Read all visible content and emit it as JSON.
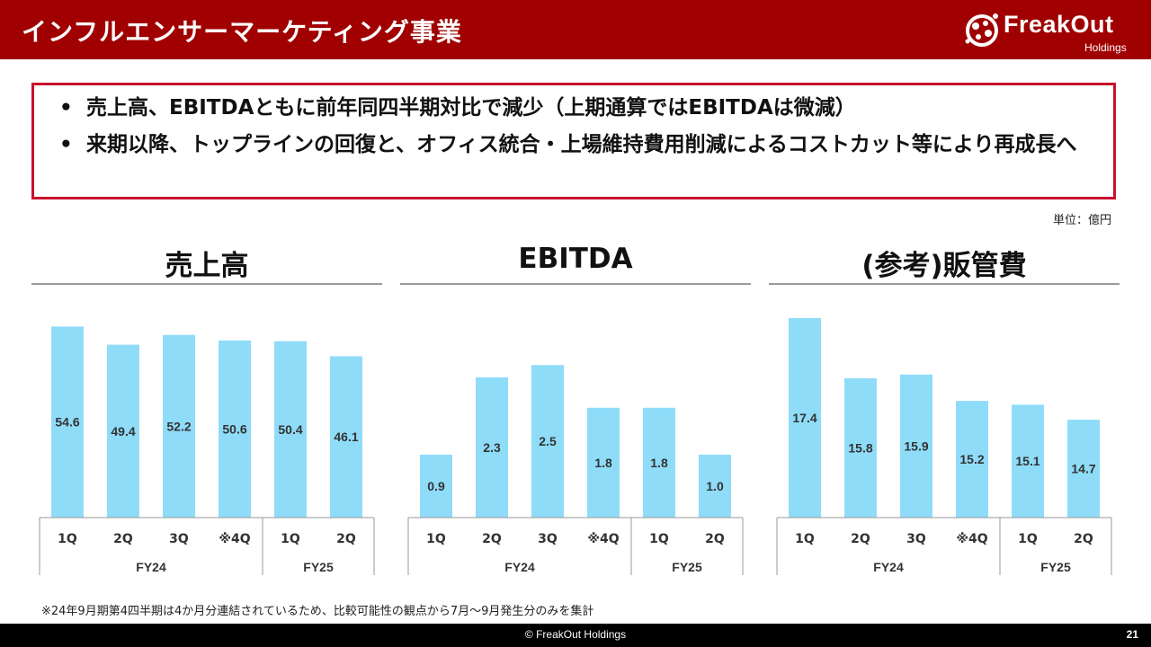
{
  "header": {
    "title": "インフルエンサーマーケティング事業",
    "logo_text": "FreakOut",
    "logo_sub": "Holdings"
  },
  "summary": {
    "bullets": [
      "売上高、EBITDAともに前年同四半期対比で減少（上期通算ではEBITDAは微減）",
      "来期以降、トップラインの回復と、オフィス統合・上場維持費用削減によるコストカット等により再成長へ"
    ],
    "bullet_glyph": "•"
  },
  "unit_label": "単位：億円",
  "chart_data": [
    {
      "type": "bar",
      "title": "売上高",
      "categories": [
        "1Q",
        "2Q",
        "3Q",
        "※4Q",
        "1Q",
        "2Q"
      ],
      "groups": [
        {
          "label": "FY24",
          "span": 4
        },
        {
          "label": "FY25",
          "span": 2
        }
      ],
      "values": [
        54.6,
        49.4,
        52.2,
        50.6,
        50.4,
        46.1
      ],
      "value_labels": [
        "54.6",
        "49.4",
        "52.2",
        "50.6",
        "50.4",
        "46.1"
      ],
      "ylim": [
        0,
        57
      ]
    },
    {
      "type": "bar",
      "title": "EBITDA",
      "categories": [
        "1Q",
        "2Q",
        "3Q",
        "※4Q",
        "1Q",
        "2Q"
      ],
      "groups": [
        {
          "label": "FY24",
          "span": 4
        },
        {
          "label": "FY25",
          "span": 2
        }
      ],
      "values": [
        0.9,
        2.3,
        2.5,
        1.8,
        1.8,
        1.0
      ],
      "value_labels": [
        "0.9",
        "2.3",
        "2.5",
        "1.8",
        "1.8",
        "1.0"
      ],
      "ylim": [
        0,
        3.27
      ]
    },
    {
      "type": "bar",
      "title": "(参考)販管費",
      "categories": [
        "1Q",
        "2Q",
        "3Q",
        "※4Q",
        "1Q",
        "2Q"
      ],
      "groups": [
        {
          "label": "FY24",
          "span": 4
        },
        {
          "label": "FY25",
          "span": 2
        }
      ],
      "values": [
        17.4,
        15.8,
        15.9,
        15.2,
        15.1,
        14.7
      ],
      "value_labels": [
        "17.4",
        "15.8",
        "15.9",
        "15.2",
        "15.1",
        "14.7"
      ],
      "ylim": [
        12.1,
        17.4
      ]
    }
  ],
  "colors": {
    "bar": "#8fdcf9",
    "header": "#a00000",
    "box_border": "#c8102e"
  },
  "footnote": "※24年9月期第4四半期は4か月分連結されているため、比較可能性の観点から7月～9月発生分のみを集計",
  "footer": {
    "copyright": "© FreakOut Holdings",
    "page_number": "21"
  }
}
